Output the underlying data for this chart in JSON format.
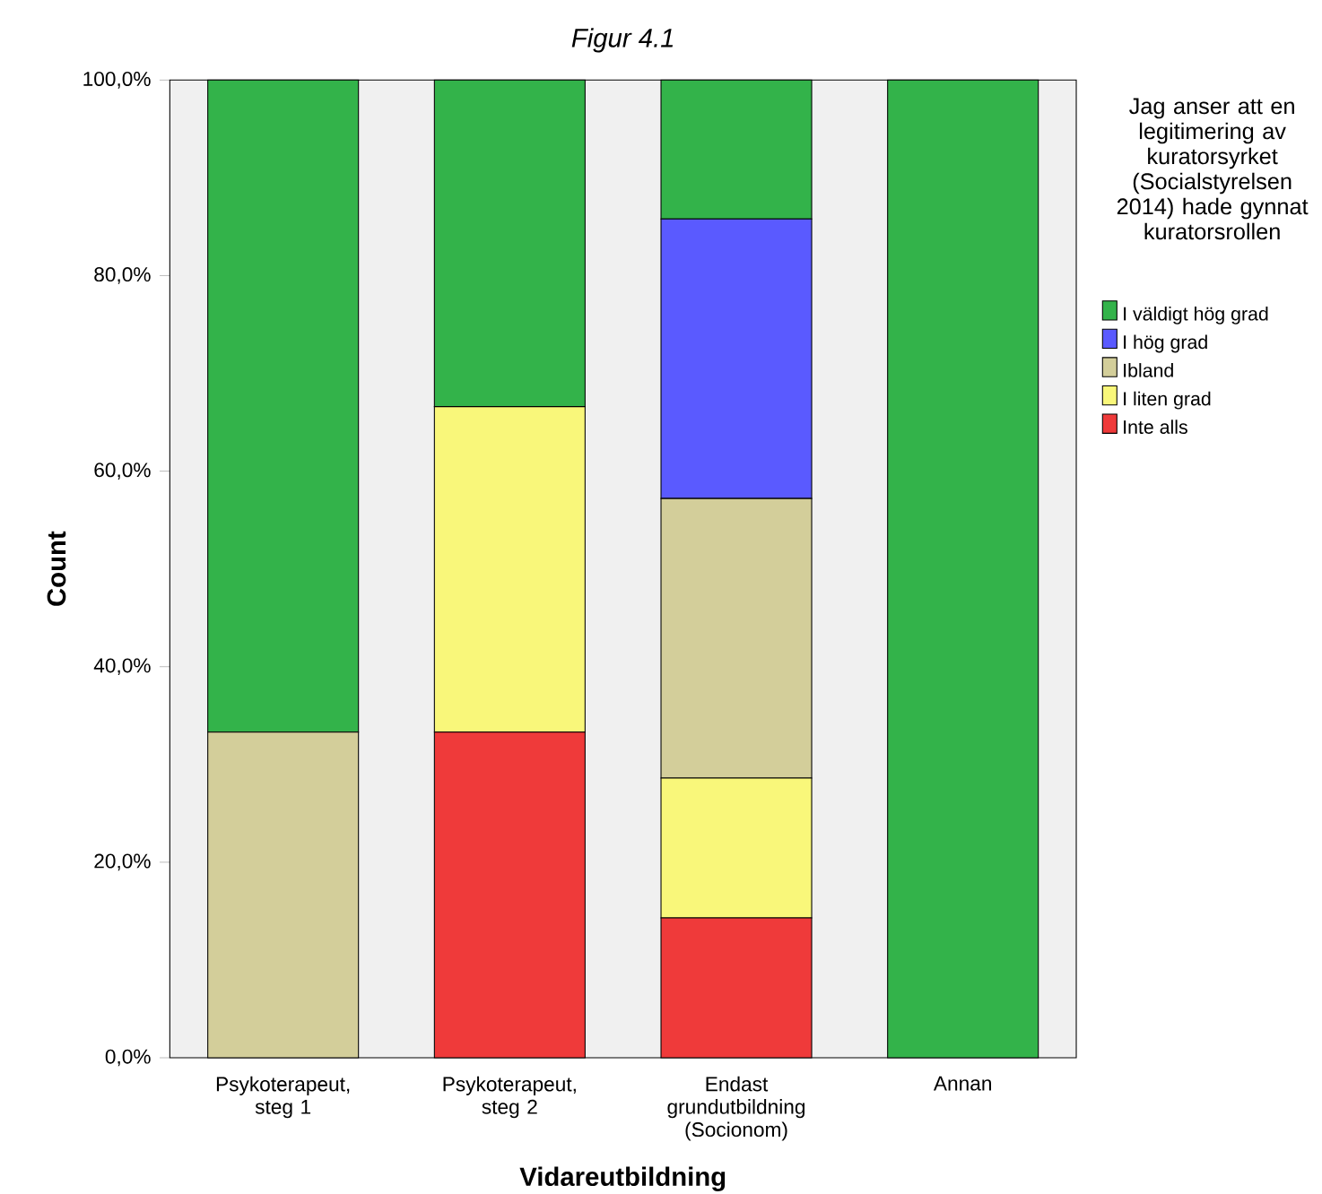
{
  "chart_data": {
    "type": "bar",
    "title": "Figur 4.1",
    "xlabel": "Vidareutbildning",
    "ylabel": "Count",
    "legend_title": "Jag anser att en legitimering av kuratorsyrket (Socialstyrelsen 2014) hade gynnat kuratorsrollen",
    "categories": [
      "Psykoterapeut, steg 1",
      "Psykoterapeut, steg 2",
      "Endast grundutbildning (Socionom)",
      "Annan"
    ],
    "stacked": true,
    "legend": "right",
    "grid": false,
    "ylim": [
      0,
      100
    ],
    "yticks": [
      {
        "value": 0,
        "label": "0,0%"
      },
      {
        "value": 20,
        "label": "20,0%"
      },
      {
        "value": 40,
        "label": "40,0%"
      },
      {
        "value": 60,
        "label": "60,0%"
      },
      {
        "value": 80,
        "label": "80,0%"
      },
      {
        "value": 100,
        "label": "100,0%"
      }
    ],
    "series": [
      {
        "name": "Inte alls",
        "color": "#ef3a3a",
        "values": [
          0,
          33.3,
          14.3,
          0
        ]
      },
      {
        "name": "I liten grad",
        "color": "#f9f77a",
        "values": [
          0,
          33.3,
          14.3,
          0
        ]
      },
      {
        "name": "Ibland",
        "color": "#d3ce9a",
        "values": [
          33.3,
          0,
          28.6,
          0
        ]
      },
      {
        "name": "I hög grad",
        "color": "#5a5aff",
        "values": [
          0,
          0,
          28.6,
          0
        ]
      },
      {
        "name": "I väldigt hög grad",
        "color": "#33b34a",
        "values": [
          66.7,
          33.4,
          14.2,
          100
        ]
      }
    ]
  }
}
